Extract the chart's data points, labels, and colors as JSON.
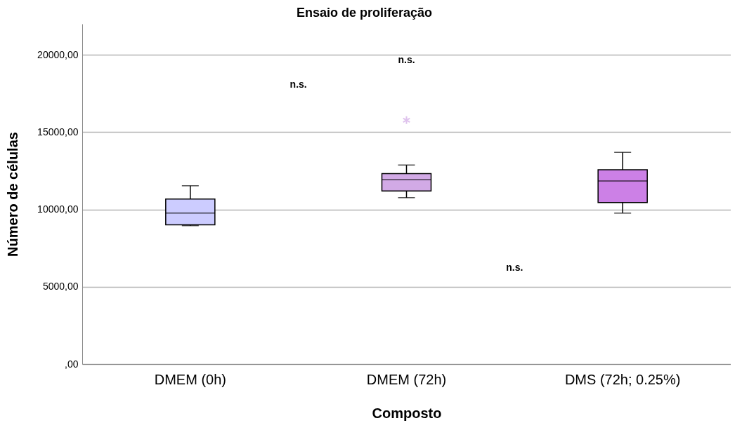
{
  "chart_data": {
    "type": "box",
    "title": "Ensaio de proliferação",
    "xlabel": "Composto",
    "ylabel": "Número de células",
    "categories": [
      "DMEM (0h)",
      "DMEM (72h)",
      "DMS (72h; 0.25%)"
    ],
    "boxes": [
      {
        "low": 8950,
        "q1": 9000,
        "median": 9760,
        "q3": 10670,
        "high": 11530
      },
      {
        "low": 10760,
        "q1": 11190,
        "median": 11920,
        "q3": 12310,
        "high": 12870,
        "outliers": [
          15770
        ]
      },
      {
        "low": 9760,
        "q1": 10450,
        "median": 11840,
        "q3": 12570,
        "high": 13690
      }
    ],
    "colors": [
      "#ccccff",
      "#d2aae6",
      "#cc80e6"
    ],
    "ylim": [
      0,
      22000
    ],
    "yticks": [
      {
        "value": 0,
        "label": ",00"
      },
      {
        "value": 5000,
        "label": "5000,00"
      },
      {
        "value": 10000,
        "label": "10000,00"
      },
      {
        "value": 15000,
        "label": "15000,00"
      },
      {
        "value": 20000,
        "label": "20000,00"
      }
    ],
    "grid": "y",
    "annotations": [
      "n.s.",
      "n.s.",
      "n.s."
    ]
  }
}
